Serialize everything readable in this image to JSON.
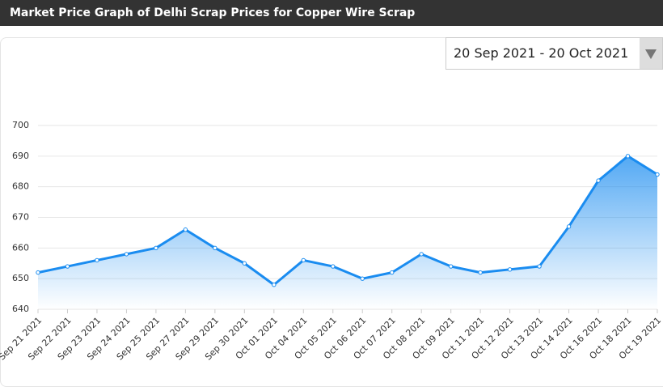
{
  "controls": {
    "date_range": "20 Sep 2021 - 20 Oct 2021"
  },
  "chart_data": {
    "type": "line",
    "title": "Market Price Graph of Delhi Scrap Prices for Copper Wire Scrap",
    "categories": [
      "Sep 21 2021",
      "Sep 22 2021",
      "Sep 23 2021",
      "Sep 24 2021",
      "Sep 25 2021",
      "Sep 27 2021",
      "Sep 29 2021",
      "Sep 30 2021",
      "Oct 01 2021",
      "Oct 04 2021",
      "Oct 05 2021",
      "Oct 06 2021",
      "Oct 07 2021",
      "Oct 08 2021",
      "Oct 09 2021",
      "Oct 11 2021",
      "Oct 12 2021",
      "Oct 13 2021",
      "Oct 14 2021",
      "Oct 16 2021",
      "Oct 18 2021",
      "Oct 19 2021"
    ],
    "values": [
      652,
      654,
      656,
      658,
      660,
      666,
      660,
      655,
      648,
      656,
      654,
      650,
      652,
      658,
      654,
      652,
      653,
      654,
      667,
      682,
      690,
      684
    ],
    "color": "#1a8cf0",
    "ylim": [
      640,
      700
    ],
    "yticks": [
      640,
      650,
      660,
      670,
      680,
      690,
      700
    ],
    "grid": true
  }
}
